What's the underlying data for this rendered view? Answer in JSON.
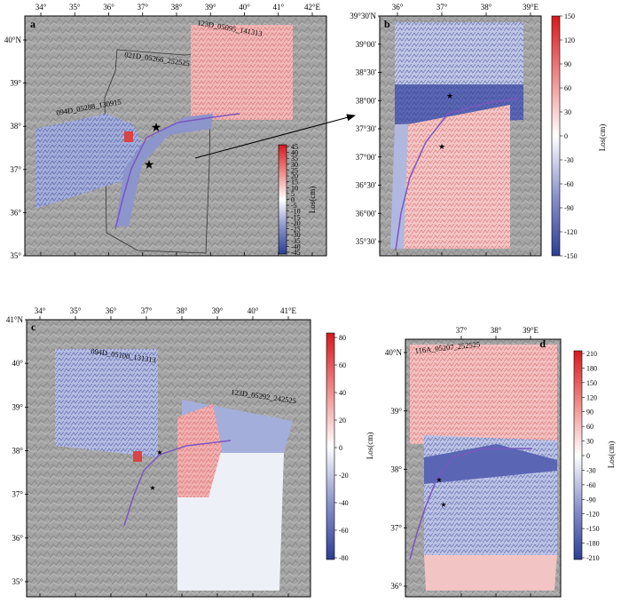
{
  "panels": {
    "a": {
      "letter": "a",
      "lon_ticks": [
        "34°",
        "35°",
        "36°",
        "37°",
        "38°",
        "39°",
        "40°",
        "41°",
        "42°E"
      ],
      "lat_ticks": [
        "40°N",
        "39°",
        "38°",
        "37°",
        "36°",
        "35°"
      ],
      "tracks": [
        "123D_05095_141313",
        "021D_05266_252525",
        "094D_05288_130915"
      ],
      "colorbar": {
        "label": "Los(cm)",
        "ticks": [
          "45",
          "40",
          "35",
          "30",
          "25",
          "20",
          "15",
          "10",
          "5",
          "0",
          "-5",
          "-10",
          "-15",
          "-20",
          "-25",
          "-30",
          "-35",
          "-40",
          "-45"
        ],
        "range": [
          -45,
          45
        ]
      },
      "scale": "km"
    },
    "b": {
      "letter": "b",
      "lon_ticks": [
        "36°",
        "37°",
        "38°",
        "39°E"
      ],
      "lat_ticks": [
        "39°30'N",
        "39°00'",
        "38°30'",
        "38°00'",
        "37°30'",
        "37°00'",
        "36°30'",
        "36°00'",
        "35°30'"
      ],
      "colorbar": {
        "label": "Los(cm)",
        "ticks": [
          "150",
          "120",
          "90",
          "60",
          "30",
          "0",
          "-30",
          "-60",
          "-90",
          "-120",
          "-150"
        ],
        "range": [
          -150,
          150
        ]
      },
      "scale": "km"
    },
    "c": {
      "letter": "c",
      "lon_ticks": [
        "34°",
        "35°",
        "36°",
        "37°",
        "38°",
        "39°",
        "40°",
        "41°E"
      ],
      "lat_ticks": [
        "41°N",
        "40°",
        "39°",
        "38°",
        "37°",
        "36°",
        "35°"
      ],
      "tracks": [
        "094D_05100_131313",
        "123D_05292_242525"
      ],
      "colorbar": {
        "label": "Los(cm)",
        "ticks": [
          "80",
          "60",
          "40",
          "20",
          "0",
          "-20",
          "-40",
          "-60",
          "-80"
        ],
        "range": [
          -80,
          80
        ]
      }
    },
    "d": {
      "letter": "d",
      "lon_ticks": [
        "37°",
        "38°",
        "39°E"
      ],
      "lat_ticks": [
        "40°N",
        "39°",
        "38°",
        "37°",
        "36°"
      ],
      "tracks": [
        "116A_05207_252525"
      ],
      "colorbar": {
        "label": "Los(cm)",
        "ticks": [
          "210",
          "180",
          "150",
          "120",
          "90",
          "60",
          "30",
          "0",
          "-30",
          "-60",
          "-90",
          "-120",
          "-150",
          "-180",
          "-210"
        ],
        "range": [
          -210,
          210
        ]
      }
    }
  },
  "colors": {
    "positive": "#d7191c",
    "negative": "#3a4ba0",
    "zero": "#ffffff",
    "terrain": "#9a9a9a"
  }
}
